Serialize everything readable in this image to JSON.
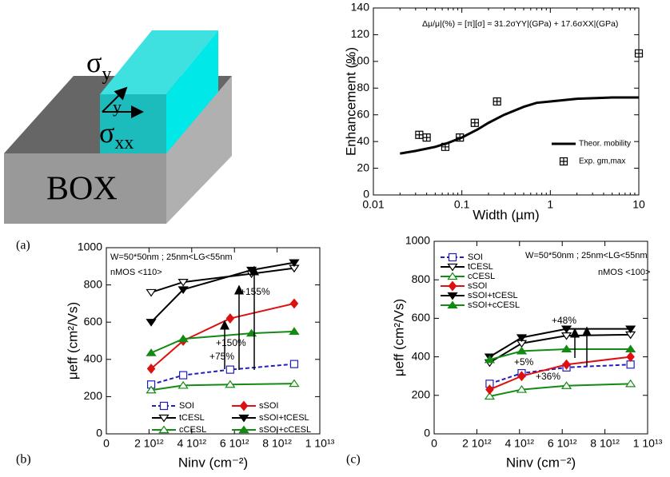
{
  "diagram": {
    "sigma_y": {
      "symbol": "σ",
      "sub": "y"
    },
    "axis_y": "y",
    "sigma_xx": {
      "symbol": "σ",
      "sub": "xx"
    },
    "box": "BOX"
  },
  "panel_labels": [
    "(a)",
    "(b)",
    "(c)"
  ],
  "chart_data": [
    {
      "type": "line",
      "xlabel": "Width (µm)",
      "ylabel": "Enhancement (%)",
      "xscale": "log",
      "xlim": [
        0.01,
        10
      ],
      "xticks": [
        0.01,
        0.1,
        1,
        10
      ],
      "ylim": [
        0,
        140
      ],
      "yticks": [
        0,
        20,
        40,
        60,
        80,
        100,
        120,
        140
      ],
      "annotations": [
        {
          "text": "Δμ/μ|(%) = [π][σ] ≈ 31.2σYY|(GPa) + 17.6σXX|(GPa)",
          "color": "#000000"
        }
      ],
      "legend": "lower right",
      "series": [
        {
          "name": "Theor. mobility",
          "color": "#000000",
          "style": "line",
          "x": [
            0.02,
            0.03,
            0.05,
            0.07,
            0.1,
            0.15,
            0.2,
            0.3,
            0.5,
            0.7,
            1,
            2,
            5,
            10
          ],
          "values": [
            31,
            33,
            36,
            39,
            43,
            49,
            54,
            60,
            66,
            69,
            70,
            72,
            73,
            73
          ]
        },
        {
          "name": "Exp. gm,max",
          "color": "#000000",
          "style": "markers",
          "marker": "square-cross",
          "x": [
            0.033,
            0.04,
            0.065,
            0.095,
            0.14,
            0.25,
            10
          ],
          "values": [
            45,
            43,
            36,
            43,
            54,
            70,
            106
          ]
        }
      ]
    },
    {
      "type": "line",
      "xlabel": "Ninv (cm⁻²)",
      "ylabel": "μeff (cm²/Vs)",
      "xlim": [
        0,
        10000000000000
      ],
      "xticks": [
        0,
        {
          "value": 2000000000000,
          "label": "2 10¹²"
        },
        {
          "value": 4000000000000,
          "label": "4 10¹²"
        },
        {
          "value": 6000000000000,
          "label": "6 10¹²"
        },
        {
          "value": 8000000000000,
          "label": "8 10¹²"
        },
        {
          "value": 10000000000000,
          "label": "1 10¹³"
        }
      ],
      "ylim": [
        0,
        1000
      ],
      "yticks": [
        0,
        200,
        400,
        600,
        800,
        1000
      ],
      "annotations": [
        {
          "text": "W=50*50nm ; 25nm<LG<55nm",
          "color": "#000000"
        },
        {
          "text": "nMOS <110>",
          "color": "#000000"
        },
        {
          "text": "+75%",
          "color": "#000000"
        },
        {
          "text": "+150%",
          "color": "#000000"
        },
        {
          "text": "+155%",
          "color": "#000000"
        }
      ],
      "legend": "lower",
      "series": [
        {
          "name": "SOI",
          "color": "#1f1fbf",
          "style": "dashed",
          "marker": "square",
          "filled": false,
          "x": [
            2100000000000,
            3600000000000,
            5800000000000,
            8800000000000
          ],
          "values": [
            265,
            315,
            345,
            375
          ]
        },
        {
          "name": "sSOI",
          "color": "#dd1111",
          "style": "solid",
          "marker": "diamond",
          "filled": true,
          "x": [
            2100000000000,
            3600000000000,
            5800000000000,
            8800000000000
          ],
          "values": [
            350,
            500,
            620,
            700
          ]
        },
        {
          "name": "tCESL",
          "color": "#000000",
          "style": "solid",
          "marker": "tri-down",
          "filled": false,
          "x": [
            2100000000000,
            3600000000000,
            6800000000000,
            8800000000000
          ],
          "values": [
            760,
            815,
            860,
            890
          ]
        },
        {
          "name": "sSOI+tCESL",
          "color": "#000000",
          "style": "solid",
          "marker": "tri-down",
          "filled": true,
          "x": [
            2100000000000,
            3600000000000,
            6800000000000,
            8800000000000
          ],
          "values": [
            600,
            775,
            880,
            920
          ]
        },
        {
          "name": "cCESL",
          "color": "#138a13",
          "style": "solid",
          "marker": "tri-up",
          "filled": false,
          "x": [
            2100000000000,
            3600000000000,
            5800000000000,
            8800000000000
          ],
          "values": [
            235,
            260,
            265,
            270
          ]
        },
        {
          "name": "sSOI+cCESL",
          "color": "#138a13",
          "style": "solid",
          "marker": "tri-up",
          "filled": true,
          "x": [
            2100000000000,
            3600000000000,
            6800000000000,
            8800000000000
          ],
          "values": [
            435,
            510,
            540,
            550
          ]
        }
      ]
    },
    {
      "type": "line",
      "xlabel": "Ninv (cm⁻²)",
      "ylabel": "μeff (cm²/Vs)",
      "xlim": [
        0,
        10000000000000
      ],
      "xticks": [
        0,
        {
          "value": 2000000000000,
          "label": "2 10¹²"
        },
        {
          "value": 4000000000000,
          "label": "4 10¹²"
        },
        {
          "value": 6000000000000,
          "label": "6 10¹²"
        },
        {
          "value": 8000000000000,
          "label": "8 10¹²"
        },
        {
          "value": 10000000000000,
          "label": "1 10¹³"
        }
      ],
      "ylim": [
        0,
        1000
      ],
      "yticks": [
        0,
        200,
        400,
        600,
        800,
        1000
      ],
      "annotations": [
        {
          "text": "W=50*50nm ; 25nm<LG<55nm",
          "color": "#000000"
        },
        {
          "text": "nMOS <100>",
          "color": "#000000"
        },
        {
          "text": "+48%",
          "color": "#000000"
        },
        {
          "text": "+5%",
          "color": "#dd1111"
        },
        {
          "text": "+36%",
          "color": "#000000"
        }
      ],
      "legend": "upper left",
      "series": [
        {
          "name": "SOI",
          "color": "#1f1fbf",
          "style": "dashed",
          "marker": "square",
          "filled": false,
          "x": [
            2600000000000,
            4100000000000,
            6200000000000,
            9200000000000
          ],
          "values": [
            260,
            315,
            345,
            360
          ]
        },
        {
          "name": "tCESL",
          "color": "#000000",
          "style": "solid",
          "marker": "tri-down",
          "filled": false,
          "x": [
            2600000000000,
            4100000000000,
            6200000000000,
            9200000000000
          ],
          "values": [
            370,
            470,
            510,
            515
          ]
        },
        {
          "name": "cCESL",
          "color": "#138a13",
          "style": "solid",
          "marker": "tri-up",
          "filled": false,
          "x": [
            2600000000000,
            4100000000000,
            6200000000000,
            9200000000000
          ],
          "values": [
            195,
            230,
            250,
            260
          ]
        },
        {
          "name": "sSOI",
          "color": "#dd1111",
          "style": "solid",
          "marker": "diamond",
          "filled": true,
          "x": [
            2600000000000,
            4100000000000,
            6200000000000,
            9200000000000
          ],
          "values": [
            230,
            300,
            360,
            400
          ]
        },
        {
          "name": "sSOI+tCESL",
          "color": "#000000",
          "style": "solid",
          "marker": "tri-down",
          "filled": true,
          "x": [
            2600000000000,
            4100000000000,
            6200000000000,
            9200000000000
          ],
          "values": [
            400,
            500,
            545,
            545
          ]
        },
        {
          "name": "sSOI+cCESL",
          "color": "#138a13",
          "style": "solid",
          "marker": "tri-up",
          "filled": true,
          "x": [
            2600000000000,
            4100000000000,
            6200000000000,
            9200000000000
          ],
          "values": [
            385,
            430,
            440,
            440
          ]
        }
      ]
    }
  ]
}
